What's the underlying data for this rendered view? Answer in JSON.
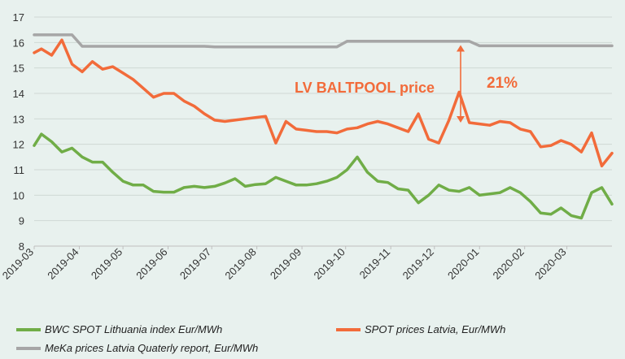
{
  "chart_data": {
    "type": "line",
    "title": "",
    "xlabel": "",
    "ylabel": "",
    "ylim": [
      8,
      17
    ],
    "yticks": [
      8,
      9,
      10,
      11,
      12,
      13,
      14,
      15,
      16,
      17
    ],
    "xlim": [
      "2019-03",
      "2020-04"
    ],
    "xticks": [
      "2019-03",
      "2019-04",
      "2019-05",
      "2019-06",
      "2019-07",
      "2019-08",
      "2019-09",
      "2019-10",
      "2019-11",
      "2019-12",
      "2020-01",
      "2020-02",
      "2020-03"
    ],
    "grid": "horizontal",
    "legend_placement": "bottom",
    "series": [
      {
        "name": "BWC SPOT Lithuania index Eur/MWh",
        "color": "#70ad47",
        "x": [
          "2019-03-01",
          "2019-03-06",
          "2019-03-13",
          "2019-03-20",
          "2019-03-27",
          "2019-04-03",
          "2019-04-10",
          "2019-04-17",
          "2019-04-24",
          "2019-05-01",
          "2019-05-08",
          "2019-05-15",
          "2019-05-22",
          "2019-05-29",
          "2019-06-05",
          "2019-06-12",
          "2019-06-19",
          "2019-06-26",
          "2019-07-03",
          "2019-07-10",
          "2019-07-17",
          "2019-07-24",
          "2019-07-31",
          "2019-08-07",
          "2019-08-14",
          "2019-08-21",
          "2019-08-28",
          "2019-09-04",
          "2019-09-11",
          "2019-09-18",
          "2019-09-25",
          "2019-10-02",
          "2019-10-09",
          "2019-10-16",
          "2019-10-23",
          "2019-10-30",
          "2019-11-06",
          "2019-11-13",
          "2019-11-20",
          "2019-11-27",
          "2019-12-04",
          "2019-12-11",
          "2019-12-18",
          "2019-12-25",
          "2020-01-01",
          "2020-01-08",
          "2020-01-15",
          "2020-01-22",
          "2020-01-29",
          "2020-02-05",
          "2020-02-12",
          "2020-02-19",
          "2020-02-26",
          "2020-03-04",
          "2020-03-11",
          "2020-03-18",
          "2020-03-25",
          "2020-04-01"
        ],
        "y": [
          11.95,
          12.4,
          12.1,
          11.7,
          11.85,
          11.5,
          11.3,
          11.3,
          10.9,
          10.55,
          10.4,
          10.4,
          10.15,
          10.12,
          10.12,
          10.3,
          10.35,
          10.3,
          10.35,
          10.48,
          10.65,
          10.35,
          10.42,
          10.45,
          10.7,
          10.55,
          10.4,
          10.4,
          10.45,
          10.55,
          10.7,
          11.0,
          11.5,
          10.9,
          10.55,
          10.5,
          10.25,
          10.2,
          9.7,
          10.0,
          10.4,
          10.2,
          10.15,
          10.3,
          10.0,
          10.05,
          10.1,
          10.3,
          10.1,
          9.75,
          9.3,
          9.25,
          9.5,
          9.2,
          9.1,
          10.1,
          10.3,
          9.65
        ]
      },
      {
        "name": "SPOT prices Latvia, Eur/MWh",
        "color": "#f26b3a",
        "x": [
          "2019-03-01",
          "2019-03-06",
          "2019-03-13",
          "2019-03-20",
          "2019-03-27",
          "2019-04-03",
          "2019-04-10",
          "2019-04-17",
          "2019-04-24",
          "2019-05-01",
          "2019-05-08",
          "2019-05-15",
          "2019-05-22",
          "2019-05-29",
          "2019-06-05",
          "2019-06-12",
          "2019-06-19",
          "2019-06-26",
          "2019-07-03",
          "2019-07-10",
          "2019-07-17",
          "2019-07-24",
          "2019-07-31",
          "2019-08-07",
          "2019-08-14",
          "2019-08-21",
          "2019-08-28",
          "2019-09-04",
          "2019-09-11",
          "2019-09-18",
          "2019-09-25",
          "2019-10-02",
          "2019-10-09",
          "2019-10-16",
          "2019-10-23",
          "2019-10-30",
          "2019-11-06",
          "2019-11-13",
          "2019-11-20",
          "2019-11-27",
          "2019-12-04",
          "2019-12-11",
          "2019-12-18",
          "2019-12-25",
          "2020-01-01",
          "2020-01-08",
          "2020-01-15",
          "2020-01-22",
          "2020-01-29",
          "2020-02-05",
          "2020-02-12",
          "2020-02-19",
          "2020-02-26",
          "2020-03-04",
          "2020-03-11",
          "2020-03-18",
          "2020-03-25",
          "2020-04-01"
        ],
        "y": [
          15.6,
          15.75,
          15.5,
          16.1,
          15.15,
          14.85,
          15.25,
          14.95,
          15.05,
          14.8,
          14.55,
          14.2,
          13.85,
          14.0,
          14.0,
          13.7,
          13.5,
          13.2,
          12.95,
          12.9,
          12.95,
          13.0,
          13.05,
          13.1,
          12.05,
          12.9,
          12.6,
          12.55,
          12.5,
          12.5,
          12.45,
          12.6,
          12.65,
          12.8,
          12.9,
          12.8,
          12.65,
          12.5,
          13.2,
          12.2,
          12.05,
          12.95,
          14.05,
          12.85,
          12.8,
          12.75,
          12.9,
          12.85,
          12.6,
          12.5,
          11.9,
          11.95,
          12.15,
          12.0,
          11.7,
          12.45,
          11.15,
          11.65
        ]
      },
      {
        "name": "MeKa prices Latvia Quaterly report, Eur/MWh",
        "color": "#a6a6a6",
        "x": [
          "2019-03-01",
          "2019-03-27",
          "2019-04-03",
          "2019-06-26",
          "2019-07-03",
          "2019-09-25",
          "2019-10-02",
          "2019-12-25",
          "2020-01-01",
          "2020-04-01"
        ],
        "y": [
          16.3,
          16.3,
          15.85,
          15.85,
          15.83,
          15.83,
          16.05,
          16.05,
          15.87,
          15.87
        ]
      }
    ],
    "annotations": [
      {
        "text": "LV BALTPOOL price",
        "color": "#f26b3a"
      },
      {
        "text": "21%",
        "color": "#f26b3a"
      }
    ],
    "arrow": {
      "x": "2019-12-19",
      "from": 15.9,
      "to": 12.85,
      "color": "#f26b3a"
    }
  }
}
